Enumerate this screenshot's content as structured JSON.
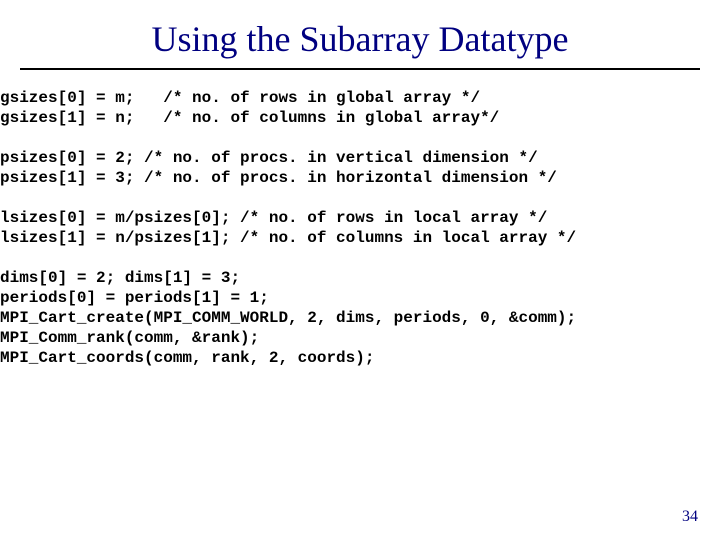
{
  "title": "Using the Subarray Datatype",
  "title_color": "#000080",
  "title_fontsize": 36,
  "rule_color": "#000000",
  "code_fontfamily": "Courier New",
  "code_fontsize": 16,
  "code_color": "#000000",
  "background_color": "#ffffff",
  "code": {
    "l01": "gsizes[0] = m;   /* no. of rows in global array */",
    "l02": "gsizes[1] = n;   /* no. of columns in global array*/",
    "l03": "",
    "l04": "psizes[0] = 2; /* no. of procs. in vertical dimension */",
    "l05": "psizes[1] = 3; /* no. of procs. in horizontal dimension */",
    "l06": "",
    "l07": "lsizes[0] = m/psizes[0]; /* no. of rows in local array */",
    "l08": "lsizes[1] = n/psizes[1]; /* no. of columns in local array */",
    "l09": "",
    "l10": "dims[0] = 2; dims[1] = 3;",
    "l11": "periods[0] = periods[1] = 1;",
    "l12": "MPI_Cart_create(MPI_COMM_WORLD, 2, dims, periods, 0, &comm);",
    "l13": "MPI_Comm_rank(comm, &rank);",
    "l14": "MPI_Cart_coords(comm, rank, 2, coords);"
  },
  "page_number": "34",
  "page_number_color": "#000080"
}
